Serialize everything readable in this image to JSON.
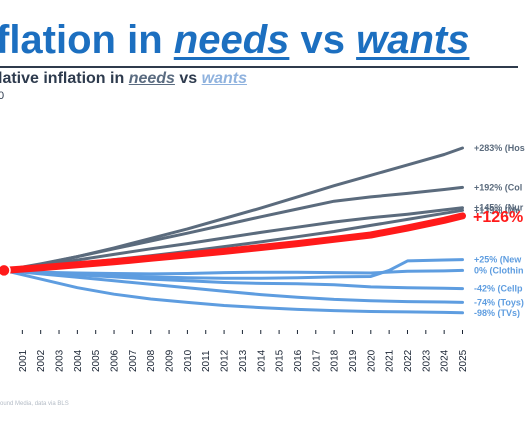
{
  "header": {
    "title_part1": "flation in ",
    "title_needs": "needs",
    "title_mid": " vs ",
    "title_wants": "wants",
    "subtitle_part1": "lative inflation in ",
    "subtitle_needs": "needs",
    "subtitle_mid": " vs ",
    "subtitle_wants": "wants",
    "unit_note": "0"
  },
  "footer": {
    "source": "ound Media, data via BLS"
  },
  "colors": {
    "needs": "#5b6b7d",
    "needs_alt": "#4d6378",
    "highlight": "#ff1a1a",
    "wants": "#5e9de0"
  },
  "chart_data": {
    "type": "line",
    "x_label_years": [
      "2001",
      "2002",
      "2003",
      "2004",
      "2005",
      "2006",
      "2007",
      "2008",
      "2009",
      "2010",
      "2011",
      "2012",
      "2013",
      "2014",
      "2015",
      "2016",
      "2017",
      "2018",
      "2019",
      "2020",
      "2021",
      "2022",
      "2023",
      "2024",
      "2025"
    ],
    "xlim": [
      2000,
      2025.3
    ],
    "ylim": [
      -110,
      290
    ],
    "grid": false,
    "legend": "end-of-line labels",
    "series": [
      {
        "label": "+283% (Hos",
        "group": "needs",
        "highlight": false,
        "x": [
          2000,
          2002,
          2004,
          2006,
          2008,
          2010,
          2012,
          2014,
          2016,
          2018,
          2020,
          2022,
          2024,
          2025
        ],
        "y": [
          0,
          14,
          32,
          52,
          74,
          96,
          120,
          144,
          170,
          196,
          220,
          244,
          268,
          283
        ]
      },
      {
        "label": "+192% (Col",
        "group": "needs",
        "highlight": false,
        "x": [
          2000,
          2002,
          2004,
          2006,
          2008,
          2010,
          2012,
          2014,
          2016,
          2018,
          2020,
          2022,
          2024,
          2025
        ],
        "y": [
          0,
          15,
          32,
          50,
          68,
          86,
          105,
          124,
          142,
          160,
          170,
          178,
          187,
          192
        ]
      },
      {
        "label": "+145% (Nur",
        "group": "needs",
        "highlight": false,
        "x": [
          2000,
          2002,
          2004,
          2006,
          2008,
          2010,
          2012,
          2014,
          2016,
          2018,
          2020,
          2022,
          2024,
          2025
        ],
        "y": [
          0,
          12,
          24,
          37,
          50,
          62,
          75,
          88,
          100,
          112,
          122,
          130,
          140,
          145
        ]
      },
      {
        "label": "+139% (Me",
        "group": "needs",
        "highlight": false,
        "x": [
          2000,
          2002,
          2004,
          2006,
          2008,
          2010,
          2012,
          2014,
          2016,
          2018,
          2020,
          2022,
          2024,
          2025
        ],
        "y": [
          0,
          8,
          16,
          25,
          34,
          44,
          55,
          66,
          78,
          90,
          104,
          118,
          132,
          139
        ]
      },
      {
        "label": "+126%",
        "group": "overall",
        "highlight": true,
        "x": [
          2000,
          2002,
          2004,
          2006,
          2008,
          2010,
          2012,
          2014,
          2016,
          2018,
          2020,
          2022,
          2024,
          2025
        ],
        "y": [
          0,
          6,
          13,
          20,
          28,
          36,
          44,
          53,
          62,
          72,
          82,
          98,
          116,
          126
        ]
      },
      {
        "label": "+25% (New",
        "group": "wants",
        "highlight": false,
        "x": [
          2000,
          2002,
          2004,
          2006,
          2008,
          2010,
          2012,
          2014,
          2016,
          2018,
          2020,
          2021,
          2022,
          2024,
          2025
        ],
        "y": [
          0,
          -4,
          -8,
          -12,
          -15,
          -17,
          -18,
          -18,
          -17,
          -15,
          -14,
          0,
          22,
          24,
          25
        ]
      },
      {
        "label": "0% (Clothin",
        "group": "wants",
        "highlight": false,
        "x": [
          2000,
          2002,
          2004,
          2006,
          2008,
          2010,
          2012,
          2014,
          2016,
          2018,
          2020,
          2022,
          2024,
          2025
        ],
        "y": [
          0,
          -4,
          -6,
          -7,
          -8,
          -7,
          -5,
          -4,
          -4,
          -5,
          -6,
          -2,
          -1,
          0
        ]
      },
      {
        "label": "-42% (Cellp",
        "group": "wants",
        "highlight": false,
        "x": [
          2000,
          2002,
          2004,
          2006,
          2008,
          2010,
          2012,
          2014,
          2016,
          2018,
          2020,
          2022,
          2024,
          2025
        ],
        "y": [
          0,
          -5,
          -10,
          -15,
          -20,
          -24,
          -28,
          -30,
          -31,
          -33,
          -38,
          -40,
          -41,
          -42
        ]
      },
      {
        "label": "-74% (Toys)",
        "group": "wants",
        "highlight": false,
        "x": [
          2000,
          2002,
          2004,
          2006,
          2008,
          2010,
          2012,
          2014,
          2016,
          2018,
          2020,
          2022,
          2024,
          2025
        ],
        "y": [
          0,
          -8,
          -16,
          -24,
          -32,
          -40,
          -48,
          -56,
          -62,
          -67,
          -70,
          -72,
          -73,
          -74
        ]
      },
      {
        "label": "-98% (TVs)",
        "group": "wants",
        "highlight": false,
        "x": [
          2000,
          2002,
          2004,
          2006,
          2008,
          2010,
          2012,
          2014,
          2016,
          2018,
          2020,
          2022,
          2024,
          2025
        ],
        "y": [
          0,
          -20,
          -40,
          -55,
          -66,
          -74,
          -81,
          -86,
          -90,
          -93,
          -95,
          -96,
          -97,
          -98
        ]
      }
    ]
  }
}
